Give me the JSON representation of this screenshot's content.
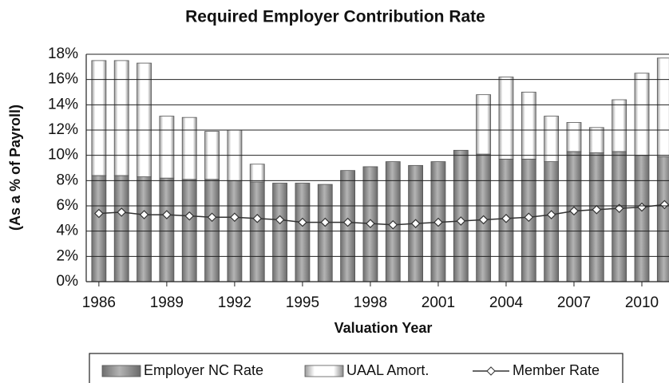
{
  "chart_data": {
    "type": "bar",
    "stacked": true,
    "title": "Required Employer Contribution Rate",
    "x_label": "Valuation Year",
    "y_label": "(As a % of Payroll)",
    "x": [
      1986,
      1987,
      1988,
      1989,
      1990,
      1991,
      1992,
      1993,
      1994,
      1995,
      1996,
      1997,
      1998,
      1999,
      2000,
      2001,
      2002,
      2003,
      2004,
      2005,
      2006,
      2007,
      2008,
      2009,
      2010,
      2011
    ],
    "xlim": [
      1985.44,
      2011.2
    ],
    "xticks": [
      1986,
      1989,
      1992,
      1995,
      1998,
      2001,
      2004,
      2007,
      2010
    ],
    "ylim": [
      0,
      18
    ],
    "yticks": [
      {
        "value": 0,
        "label": "0%"
      },
      {
        "value": 2,
        "label": "2%"
      },
      {
        "value": 4,
        "label": "4%"
      },
      {
        "value": 6,
        "label": "6%"
      },
      {
        "value": 8,
        "label": "8%"
      },
      {
        "value": 10,
        "label": "10%"
      },
      {
        "value": 12,
        "label": "12%"
      },
      {
        "value": 14,
        "label": "14%"
      },
      {
        "value": 16,
        "label": "16%"
      },
      {
        "value": 18,
        "label": "18%"
      }
    ],
    "grid": true,
    "legend": "bottom",
    "series": [
      {
        "name": "Employer NC Rate",
        "color": "#8c8c8c",
        "type": "bar",
        "values": [
          8.4,
          8.4,
          8.3,
          8.2,
          8.1,
          8.1,
          8.0,
          7.9,
          7.8,
          7.8,
          7.7,
          8.8,
          9.1,
          9.5,
          9.2,
          9.5,
          10.4,
          10.1,
          9.7,
          9.7,
          9.5,
          10.3,
          10.2,
          10.3,
          10.0,
          9.9
        ]
      },
      {
        "name": "UAAL Amort.",
        "color": "#ffffff",
        "type": "bar",
        "values": [
          9.1,
          9.1,
          9.0,
          4.9,
          4.9,
          3.8,
          4.0,
          1.4,
          0,
          0,
          0,
          0,
          0,
          0,
          0,
          0,
          0,
          4.7,
          6.5,
          5.3,
          3.6,
          2.3,
          2.0,
          4.1,
          6.5,
          7.8
        ]
      },
      {
        "name": "Member Rate",
        "color": "#333333",
        "type": "line",
        "values": [
          5.4,
          5.5,
          5.3,
          5.3,
          5.2,
          5.1,
          5.1,
          5.0,
          4.9,
          4.7,
          4.7,
          4.7,
          4.6,
          4.5,
          4.6,
          4.7,
          4.8,
          4.9,
          5.0,
          5.1,
          5.3,
          5.6,
          5.7,
          5.8,
          5.9,
          6.1
        ]
      }
    ]
  }
}
